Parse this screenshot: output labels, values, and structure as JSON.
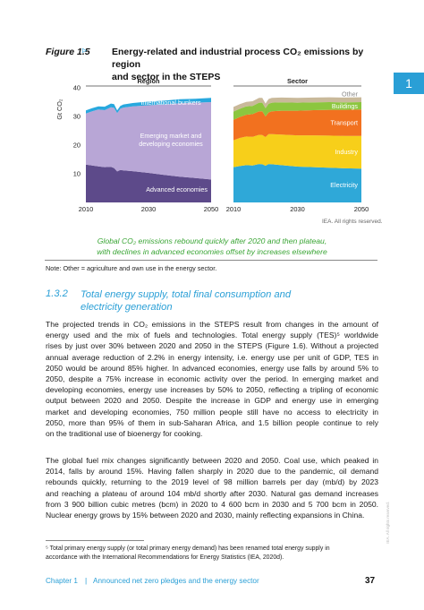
{
  "figure": {
    "label": "Figure 1.5",
    "arrow": "▹",
    "title_line1": "Energy-related and industrial process CO₂ emissions by region",
    "title_line2": "and sector in the STEPS",
    "chapter_tab": "1",
    "credit": "IEA. All rights reserved.",
    "caption_line1": "Global CO₂ emissions rebound quickly after 2020 and then plateau,",
    "caption_line2": "with declines in advanced economies offset by increases elsewhere",
    "note": "Note: Other = agriculture and own use in the energy sector."
  },
  "chart_data": [
    {
      "type": "area",
      "title": "Region",
      "ylabel": "Gt CO₂",
      "ylim": [
        0,
        40
      ],
      "yticks": [
        10,
        20,
        30,
        40
      ],
      "x": [
        2010,
        2012,
        2014,
        2016,
        2018,
        2019,
        2020,
        2021,
        2022,
        2025,
        2030,
        2035,
        2040,
        2045,
        2050
      ],
      "xticks": [
        2010,
        2030,
        2050
      ],
      "series": [
        {
          "name": "Advanced economies",
          "color": "#5d4a8a",
          "values": [
            13.2,
            12.9,
            12.6,
            12.3,
            12.4,
            12.0,
            10.8,
            11.3,
            11.2,
            10.9,
            10.3,
            9.6,
            9.0,
            8.5,
            8.0
          ]
        },
        {
          "name": "Emerging market and developing economies",
          "color": "#b8a6d6",
          "values": [
            17.8,
            18.9,
            19.8,
            19.9,
            20.8,
            21.0,
            20.4,
            21.4,
            21.9,
            22.6,
            23.6,
            24.6,
            25.6,
            26.3,
            27.0
          ]
        },
        {
          "name": "International bunkers",
          "color": "#28a8de",
          "values": [
            1.1,
            1.1,
            1.1,
            1.2,
            1.3,
            1.3,
            0.9,
            1.0,
            1.1,
            1.2,
            1.3,
            1.3,
            1.4,
            1.4,
            1.5
          ]
        }
      ]
    },
    {
      "type": "area",
      "title": "Sector",
      "ylim": [
        0,
        40
      ],
      "x": [
        2010,
        2012,
        2014,
        2016,
        2018,
        2019,
        2020,
        2021,
        2022,
        2025,
        2030,
        2035,
        2040,
        2045,
        2050
      ],
      "xticks": [
        2010,
        2030,
        2050
      ],
      "series": [
        {
          "name": "Electricity",
          "color": "#2fa8d8",
          "values": [
            12.3,
            12.7,
            13.0,
            12.9,
            13.4,
            13.3,
            12.8,
            13.4,
            13.3,
            13.0,
            12.5,
            12.3,
            12.1,
            11.9,
            11.8
          ]
        },
        {
          "name": "Industry",
          "color": "#f7cf1a",
          "values": [
            9.4,
            9.8,
            10.0,
            10.0,
            10.2,
            10.2,
            10.0,
            10.4,
            10.5,
            10.7,
            10.9,
            11.1,
            11.2,
            11.3,
            11.4
          ]
        },
        {
          "name": "Transport",
          "color": "#f2711f",
          "values": [
            7.1,
            7.3,
            7.6,
            7.9,
            8.2,
            8.3,
            7.2,
            7.6,
            8.0,
            8.3,
            8.6,
            8.8,
            9.0,
            9.1,
            9.2
          ]
        },
        {
          "name": "Buildings",
          "color": "#8cc63f",
          "values": [
            2.9,
            2.9,
            2.9,
            2.9,
            3.0,
            3.0,
            2.9,
            3.0,
            3.0,
            2.9,
            2.8,
            2.7,
            2.7,
            2.6,
            2.6
          ]
        },
        {
          "name": "Other",
          "color": "#c9b99a",
          "values": [
            1.6,
            1.6,
            1.6,
            1.6,
            1.7,
            1.7,
            1.6,
            1.7,
            1.7,
            1.7,
            1.7,
            1.7,
            1.7,
            1.7,
            1.7
          ]
        }
      ]
    }
  ],
  "section": {
    "number": "1.3.2",
    "title_line1": "Total energy supply, total final consumption and",
    "title_line2": "electricity generation"
  },
  "paragraph1_lines": [
    "The projected trends in CO₂ emissions in the STEPS result from changes in the amount of",
    "energy used and the mix of fuels and technologies. Total energy supply (TES)⁵ worldwide",
    "rises by just over 30% between 2020 and 2050 in the STEPS (Figure 1.6). Without a projected",
    "annual average reduction of 2.2% in energy intensity, i.e. energy use per unit of GDP, TES in",
    "2050 would be around 85% higher. In advanced economies, energy use falls by around 5% to",
    "2050, despite a 75% increase in economic activity over the period. In emerging market and",
    "developing economies, energy use increases by 50% to 2050, reflecting a tripling of economic",
    "output between 2020 and 2050. Despite the increase in GDP and energy use in emerging",
    "market and developing economies, 750 million people still have no access to electricity in",
    "2050, more than 95% of them in sub-Saharan Africa, and 1.5 billion people continue to rely",
    "on the traditional use of bioenergy for cooking."
  ],
  "paragraph2_lines": [
    "The global fuel mix changes significantly between 2020 and 2050. Coal use, which peaked in",
    "2014, falls by around 15%. Having fallen sharply in 2020 due to the pandemic, oil demand",
    "rebounds quickly, returning to the 2019 level of 98 million barrels per day (mb/d) by 2023",
    "and reaching a plateau of around 104 mb/d shortly after 2030. Natural gas demand increases",
    "from 3 900 billion cubic metres (bcm) in 2020 to 4 600 bcm in 2030 and 5 700 bcm in 2050.",
    "Nuclear energy grows by 15% between 2020 and 2030, mainly reflecting expansions in China."
  ],
  "footnote_line1": "⁵ Total primary energy supply (or total primary energy demand) has been renamed total energy supply in",
  "footnote_line2": "accordance with the International Recommendations for Energy Statistics (IEA, 2020d).",
  "watermark": "IEA. All rights reserved.",
  "footer": {
    "chapter": "Chapter 1",
    "separator": "|",
    "text": "Announced net zero pledges and the energy sector",
    "page": "37"
  }
}
